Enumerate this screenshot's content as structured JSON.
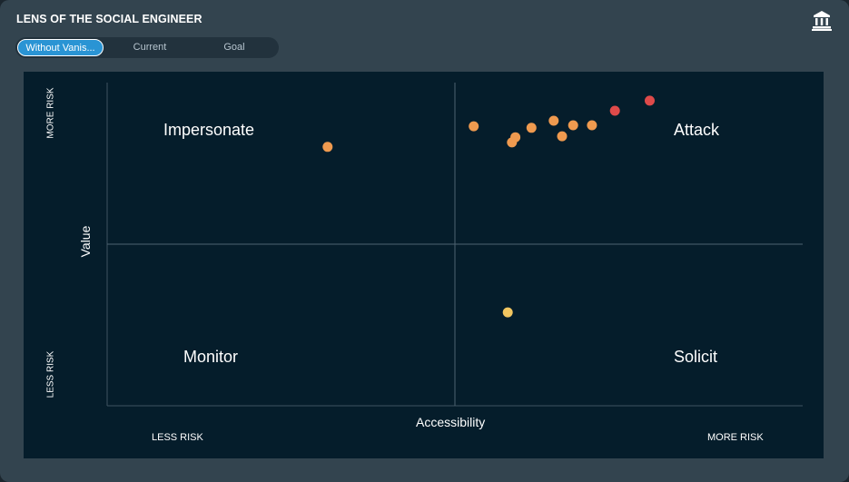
{
  "header": {
    "title": "LENS OF THE SOCIAL ENGINEER",
    "logo_icon": "bank-building-icon"
  },
  "toggle": {
    "options": [
      "Without Vanis...",
      "Current",
      "Goal"
    ],
    "selected": "Without Vanis..."
  },
  "colors": {
    "card_bg": "#33444f",
    "plot_bg": "#051d2b",
    "accent": "#2a94d4",
    "point_orange": "#ef9a4f",
    "point_red": "#df4a4a",
    "point_yellow": "#f2c660"
  },
  "quadrants": {
    "top_left": "Impersonate",
    "top_right": "Attack",
    "bottom_left": "Monitor",
    "bottom_right": "Solicit"
  },
  "axes": {
    "y_title": "Value",
    "x_title": "Accessibility",
    "y_high": "MORE RISK",
    "y_low": "LESS RISK",
    "x_low": "LESS RISK",
    "x_high": "MORE RISK"
  },
  "chart_data": {
    "type": "scatter",
    "title": "",
    "xlabel": "Accessibility",
    "ylabel": "Value",
    "xlim": [
      0,
      100
    ],
    "ylim": [
      0,
      100
    ],
    "grid": false,
    "quadrant_dividers": {
      "x": 50,
      "y": 50
    },
    "points": [
      {
        "x": 31.7,
        "y": 80.1,
        "color": "#ef9a4f"
      },
      {
        "x": 52.7,
        "y": 86.5,
        "color": "#ef9a4f"
      },
      {
        "x": 58.2,
        "y": 81.5,
        "color": "#ef9a4f"
      },
      {
        "x": 58.7,
        "y": 83.1,
        "color": "#ef9a4f"
      },
      {
        "x": 61.0,
        "y": 86.0,
        "color": "#ef9a4f"
      },
      {
        "x": 64.2,
        "y": 88.2,
        "color": "#ef9a4f"
      },
      {
        "x": 65.4,
        "y": 83.4,
        "color": "#ef9a4f"
      },
      {
        "x": 67.0,
        "y": 86.8,
        "color": "#ef9a4f"
      },
      {
        "x": 69.7,
        "y": 86.8,
        "color": "#ef9a4f"
      },
      {
        "x": 73.0,
        "y": 91.3,
        "color": "#df4a4a"
      },
      {
        "x": 78.0,
        "y": 94.4,
        "color": "#df4a4a"
      },
      {
        "x": 57.6,
        "y": 28.9,
        "color": "#f2c660"
      }
    ]
  }
}
